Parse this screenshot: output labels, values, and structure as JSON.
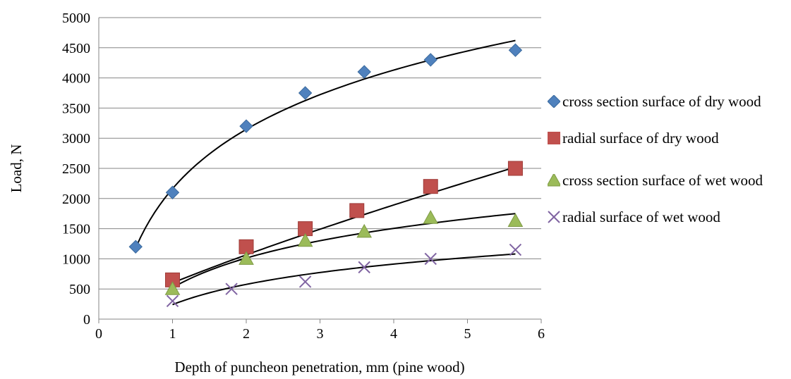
{
  "chart_data": {
    "type": "scatter",
    "title": "",
    "xlabel": "Depth of puncheon penetration, mm (pine wood)",
    "ylabel": "Load, N",
    "xlim": [
      0,
      6
    ],
    "ylim": [
      0,
      5000
    ],
    "x_ticks": [
      "0",
      "1",
      "2",
      "3",
      "4",
      "5",
      "6"
    ],
    "y_ticks": [
      "0",
      "500",
      "1000",
      "1500",
      "2000",
      "2500",
      "3000",
      "3500",
      "4000",
      "4500",
      "5000"
    ],
    "grid": "horizontal",
    "legend_position": "right",
    "series": [
      {
        "name": "cross section surface of dry wood",
        "marker": "diamond",
        "color": "#4F81BD",
        "x": [
          0.5,
          1.0,
          2.0,
          2.8,
          3.6,
          4.5,
          5.65
        ],
        "y": [
          1200,
          2100,
          3200,
          3750,
          4100,
          4300,
          4460
        ],
        "trend": "log",
        "trend_x": [
          0.5,
          5.65
        ],
        "trend_y": [
          1180,
          4620
        ]
      },
      {
        "name": "radial surface of dry wood",
        "marker": "square",
        "color": "#C0504D",
        "x": [
          1.0,
          2.0,
          2.8,
          3.5,
          4.5,
          5.65
        ],
        "y": [
          650,
          1200,
          1500,
          1800,
          2200,
          2500
        ],
        "trend": "power",
        "trend_x": [
          1.0,
          5.65
        ],
        "trend_y": [
          600,
          2520
        ]
      },
      {
        "name": "cross section surface of wet wood",
        "marker": "triangle",
        "color": "#9BBB59",
        "x": [
          1.0,
          2.0,
          2.8,
          3.6,
          4.5,
          5.65
        ],
        "y": [
          500,
          1000,
          1300,
          1450,
          1680,
          1630
        ],
        "trend": "log",
        "trend_x": [
          1.0,
          5.65
        ],
        "trend_y": [
          520,
          1750
        ]
      },
      {
        "name": "radial surface of wet wood",
        "marker": "x",
        "color": "#8064A2",
        "x": [
          1.0,
          1.8,
          2.8,
          3.6,
          4.5,
          5.65
        ],
        "y": [
          300,
          500,
          620,
          860,
          1000,
          1150
        ],
        "trend": "log",
        "trend_x": [
          1.0,
          5.65
        ],
        "trend_y": [
          240,
          1080
        ]
      }
    ]
  }
}
